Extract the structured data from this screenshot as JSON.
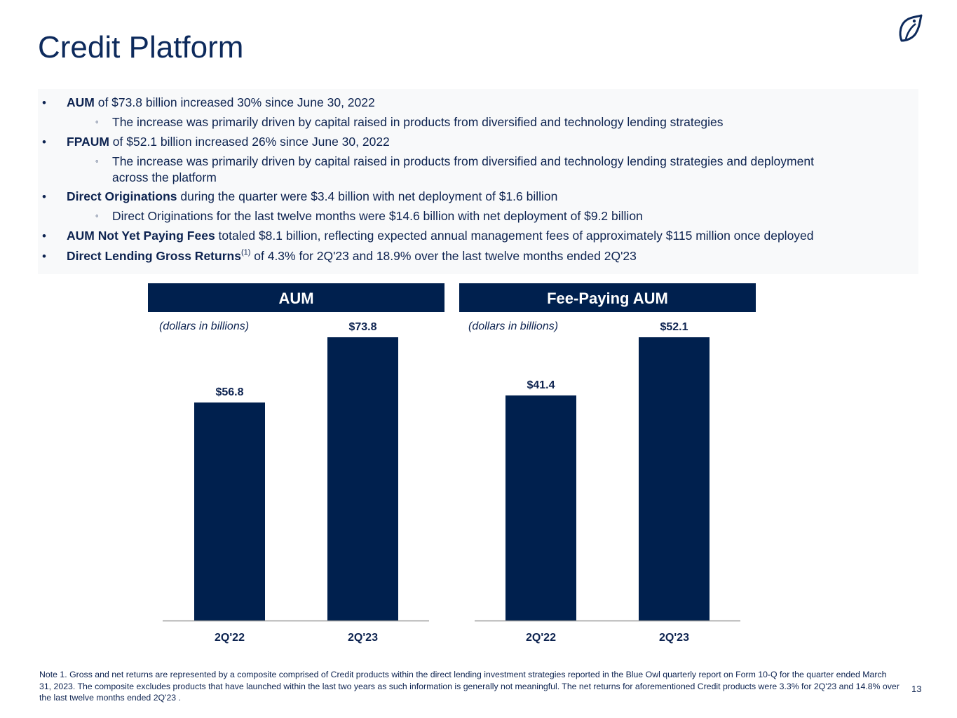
{
  "slide": {
    "title": "Credit Platform",
    "logo_icon": "owl-logo-icon",
    "page_number": "13"
  },
  "bullets": [
    {
      "level": 1,
      "bold": "AUM",
      "text": " of $73.8 billion increased 30% since June 30, 2022"
    },
    {
      "level": 2,
      "bold": "",
      "text": "The increase was primarily driven by capital raised in products from diversified and technology lending strategies"
    },
    {
      "level": 1,
      "bold": "FPAUM",
      "text": " of $52.1 billion increased 26% since June 30, 2022"
    },
    {
      "level": 2,
      "bold": "",
      "text": "The increase was primarily driven by capital raised in products from diversified and technology lending strategies and deployment",
      "text2": "across the platform"
    },
    {
      "level": 1,
      "bold": "Direct Originations",
      "text": " during the quarter were $3.4 billion with net deployment of $1.6 billion"
    },
    {
      "level": 2,
      "bold": "",
      "text": "Direct Originations for the last twelve months were $14.6 billion with net deployment of $9.2 billion"
    },
    {
      "level": 1,
      "bold": "AUM Not Yet Paying Fees",
      "text": " totaled $8.1 billion, reflecting expected annual management fees of approximately $115 million once deployed"
    },
    {
      "level": 1,
      "bold": "Direct Lending Gross Returns",
      "sup": "(1)",
      "text": " of 4.3% for 2Q'23 and 18.9% over the last twelve months ended 2Q'23"
    }
  ],
  "colors": {
    "navy": "#00204e",
    "text": "#0d2350",
    "panel": "#f8f9fa",
    "axis": "#999999"
  },
  "chart_data": [
    {
      "type": "bar",
      "title": "AUM",
      "subtitle": "(dollars in billions)",
      "categories": [
        "2Q'22",
        "2Q'23"
      ],
      "values": [
        56.8,
        73.8
      ],
      "value_labels": [
        "$56.8",
        "$73.8"
      ],
      "ylim": [
        0,
        73.8
      ],
      "grid": false
    },
    {
      "type": "bar",
      "title": "Fee-Paying AUM",
      "subtitle": "(dollars in billions)",
      "categories": [
        "2Q'22",
        "2Q'23"
      ],
      "values": [
        41.4,
        52.1
      ],
      "value_labels": [
        "$41.4",
        "$52.1"
      ],
      "ylim": [
        0,
        52.1
      ],
      "grid": false
    }
  ],
  "footnote": "Note 1. Gross and net returns are represented by a composite comprised of Credit products within the direct lending investment strategies reported in the Blue Owl quarterly report on Form 10-Q for the quarter ended March 31, 2023. The composite excludes products that have launched within the last two years as such information is generally not meaningful. The net returns for aforementioned Credit products were 3.3% for 2Q'23 and 14.8% over the last twelve months ended 2Q'23 ."
}
